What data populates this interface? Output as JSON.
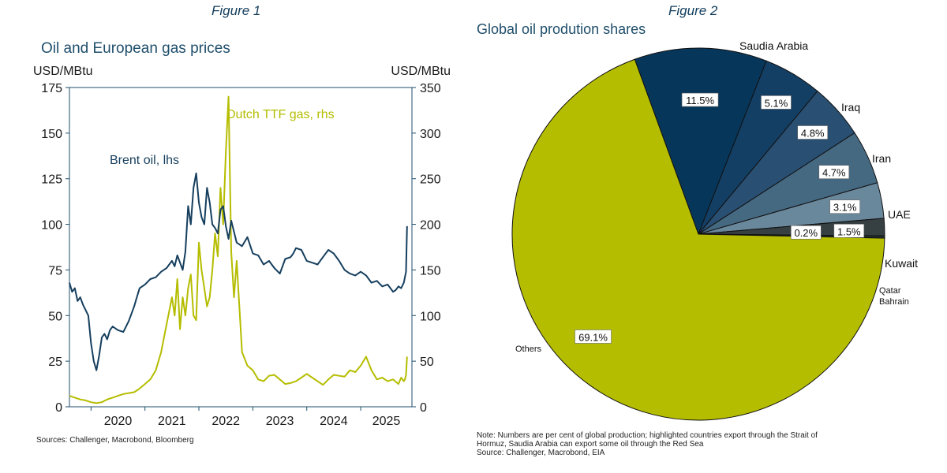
{
  "figures": [
    {
      "label": "Figure 1",
      "title": "Oil and European gas prices",
      "sources": "Sources: Challenger, Macrobond, Bloomberg"
    },
    {
      "label": "Figure 2",
      "title": "Global oil prodution shares",
      "note_lines": [
        "Note: Numbers are per cent of global production; highlighted countries export through the Strait of",
        "Hormuz, Saudia Arabia can export some oil through the Red Sea",
        "Source: Challenger, Macrobond, EIA"
      ]
    }
  ],
  "chart_data": [
    {
      "type": "line",
      "title": "Oil and European gas prices",
      "ylabel_left": "USD/MBtu",
      "ylabel_right": "USD/MBtu",
      "ylim_left": [
        0,
        175
      ],
      "ylim_right": [
        0,
        350
      ],
      "yticks_left": [
        0,
        25,
        50,
        75,
        100,
        125,
        150,
        175
      ],
      "yticks_right": [
        0,
        50,
        100,
        150,
        200,
        250,
        300,
        350
      ],
      "xlim": [
        2019.6,
        2025.95
      ],
      "xticks": [
        2020,
        2021,
        2022,
        2023,
        2024,
        2025
      ],
      "grid": false,
      "colors": {
        "brent": "#163f5e",
        "ttf": "#b5bd00",
        "axis": "#1f4e6b"
      },
      "series": [
        {
          "name": "Brent oil, lhs",
          "axis": "left",
          "x": [
            2019.6,
            2019.65,
            2019.7,
            2019.75,
            2019.8,
            2019.85,
            2019.9,
            2019.95,
            2020.0,
            2020.05,
            2020.1,
            2020.15,
            2020.2,
            2020.25,
            2020.3,
            2020.35,
            2020.4,
            2020.5,
            2020.6,
            2020.7,
            2020.8,
            2020.85,
            2020.9,
            2021.0,
            2021.1,
            2021.2,
            2021.3,
            2021.4,
            2021.5,
            2021.55,
            2021.6,
            2021.7,
            2021.75,
            2021.8,
            2021.85,
            2021.9,
            2021.95,
            2022.0,
            2022.05,
            2022.1,
            2022.15,
            2022.2,
            2022.25,
            2022.3,
            2022.35,
            2022.4,
            2022.45,
            2022.5,
            2022.55,
            2022.6,
            2022.7,
            2022.8,
            2022.9,
            2023.0,
            2023.1,
            2023.2,
            2023.3,
            2023.4,
            2023.5,
            2023.6,
            2023.7,
            2023.75,
            2023.8,
            2023.9,
            2024.0,
            2024.1,
            2024.2,
            2024.3,
            2024.4,
            2024.5,
            2024.6,
            2024.7,
            2024.8,
            2024.9,
            2025.0,
            2025.1,
            2025.2,
            2025.3,
            2025.4,
            2025.5,
            2025.6,
            2025.65,
            2025.7,
            2025.75,
            2025.8,
            2025.82,
            2025.84,
            2025.86
          ],
          "y": [
            68,
            63,
            65,
            58,
            60,
            56,
            53,
            50,
            35,
            25,
            20,
            28,
            38,
            40,
            37,
            42,
            44,
            42,
            41,
            47,
            55,
            60,
            65,
            67,
            70,
            71,
            74,
            76,
            80,
            77,
            83,
            75,
            85,
            110,
            100,
            120,
            128,
            112,
            104,
            100,
            120,
            112,
            100,
            98,
            95,
            108,
            110,
            99,
            92,
            102,
            90,
            88,
            93,
            84,
            83,
            78,
            80,
            76,
            73,
            81,
            82,
            84,
            87,
            86,
            80,
            79,
            78,
            82,
            86,
            84,
            80,
            75,
            73,
            72,
            74,
            72,
            68,
            69,
            66,
            67,
            63,
            64,
            66,
            65,
            68,
            71,
            74,
            99
          ]
        },
        {
          "name": "Dutch TTF gas, rhs",
          "axis": "right",
          "x": [
            2019.6,
            2019.7,
            2019.8,
            2019.9,
            2020.0,
            2020.1,
            2020.2,
            2020.3,
            2020.4,
            2020.5,
            2020.6,
            2020.7,
            2020.8,
            2020.9,
            2021.0,
            2021.1,
            2021.2,
            2021.3,
            2021.4,
            2021.5,
            2021.55,
            2021.6,
            2021.65,
            2021.7,
            2021.75,
            2021.8,
            2021.85,
            2021.9,
            2021.95,
            2022.0,
            2022.05,
            2022.1,
            2022.15,
            2022.2,
            2022.25,
            2022.3,
            2022.35,
            2022.4,
            2022.45,
            2022.5,
            2022.55,
            2022.6,
            2022.65,
            2022.7,
            2022.8,
            2022.9,
            2023.0,
            2023.1,
            2023.2,
            2023.3,
            2023.4,
            2023.5,
            2023.6,
            2023.7,
            2023.8,
            2023.9,
            2024.0,
            2024.1,
            2024.2,
            2024.3,
            2024.4,
            2024.5,
            2024.6,
            2024.7,
            2024.8,
            2024.9,
            2025.0,
            2025.1,
            2025.2,
            2025.3,
            2025.4,
            2025.5,
            2025.6,
            2025.7,
            2025.75,
            2025.8,
            2025.82,
            2025.84,
            2025.86
          ],
          "y": [
            12,
            10,
            8,
            7,
            5,
            4,
            5,
            8,
            10,
            12,
            14,
            15,
            16,
            20,
            25,
            30,
            40,
            60,
            90,
            120,
            100,
            140,
            85,
            120,
            100,
            130,
            145,
            100,
            95,
            180,
            150,
            130,
            110,
            120,
            150,
            190,
            165,
            240,
            200,
            280,
            340,
            170,
            120,
            160,
            60,
            45,
            40,
            30,
            28,
            34,
            35,
            30,
            25,
            26,
            28,
            32,
            36,
            32,
            28,
            24,
            30,
            35,
            34,
            33,
            40,
            38,
            45,
            55,
            40,
            30,
            32,
            28,
            30,
            25,
            32,
            28,
            30,
            35,
            55
          ]
        }
      ],
      "annotations": [
        {
          "text": "Dutch TTF gas, rhs",
          "series": 1
        },
        {
          "text": "Brent oil, lhs",
          "series": 0
        }
      ]
    },
    {
      "type": "pie",
      "title": "Global oil prodution shares",
      "slices": [
        {
          "label": "Saudia Arabia",
          "value": 11.5,
          "value_label": "11.5%",
          "color": "#06375b"
        },
        {
          "label": "Iraq",
          "value": 5.1,
          "value_label": "5.1%",
          "color": "#143f64"
        },
        {
          "label": "Iran",
          "value": 4.8,
          "value_label": "4.8%",
          "color": "#294f72"
        },
        {
          "label": "UAE",
          "value": 4.7,
          "value_label": "4.7%",
          "color": "#466982"
        },
        {
          "label": "Kuwait",
          "value": 3.1,
          "value_label": "3.1%",
          "color": "#6a889c"
        },
        {
          "label": "Qatar",
          "value": 1.5,
          "value_label": "1.5%",
          "color": "#363f42"
        },
        {
          "label": "Bahrain",
          "value": 0.2,
          "value_label": "0.2%",
          "color": "#243030"
        },
        {
          "label": "Others",
          "value": 69.1,
          "value_label": "69.1%",
          "color": "#b5bd00"
        }
      ]
    }
  ]
}
